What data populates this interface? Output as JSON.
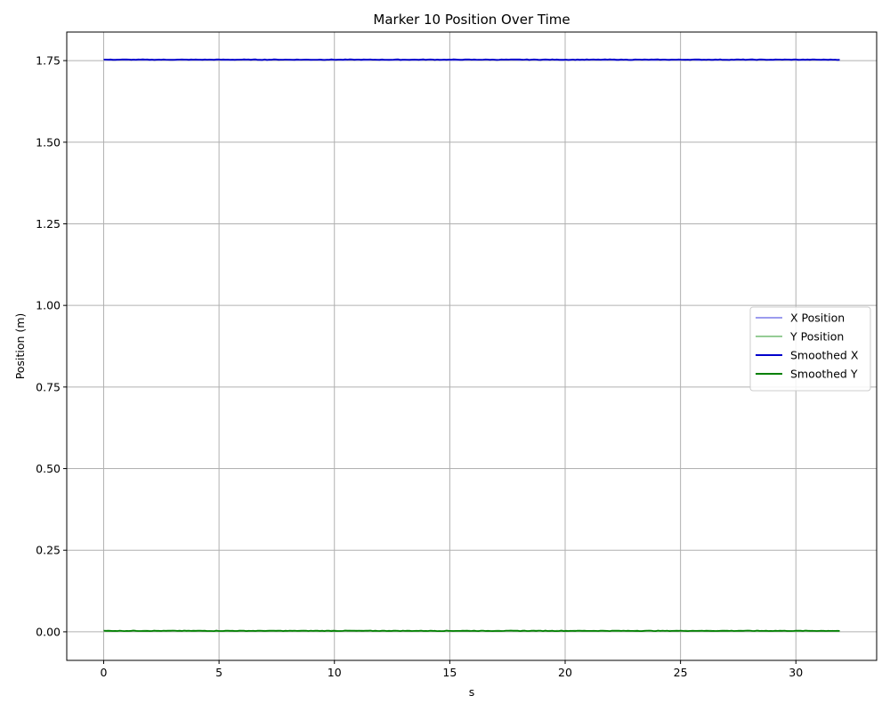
{
  "chart_data": {
    "type": "line",
    "title": "Marker 10 Position Over Time",
    "xlabel": "s",
    "ylabel": "Position (m)",
    "xlim": [
      -1.6,
      33.5
    ],
    "ylim": [
      -0.0875,
      1.8375
    ],
    "xticks": [
      0,
      5,
      10,
      15,
      20,
      25,
      30
    ],
    "yticks": [
      0.0,
      0.25,
      0.5,
      0.75,
      1.0,
      1.25,
      1.5,
      1.75
    ],
    "ytick_labels": [
      "0.00",
      "0.25",
      "0.50",
      "0.75",
      "1.00",
      "1.25",
      "1.50",
      "1.75"
    ],
    "grid": true,
    "legend_position": "center-right",
    "x_range": [
      0,
      31.9
    ],
    "series": [
      {
        "name": "X Position",
        "color": "#9b9bee",
        "baseline": 1.752,
        "style": "raw"
      },
      {
        "name": "Y Position",
        "color": "#95cc95",
        "baseline": 0.003,
        "style": "raw"
      },
      {
        "name": "Smoothed X",
        "color": "#0000cc",
        "baseline": 1.753,
        "style": "smoothed"
      },
      {
        "name": "Smoothed Y",
        "color": "#008000",
        "baseline": 0.003,
        "style": "smoothed"
      }
    ]
  }
}
